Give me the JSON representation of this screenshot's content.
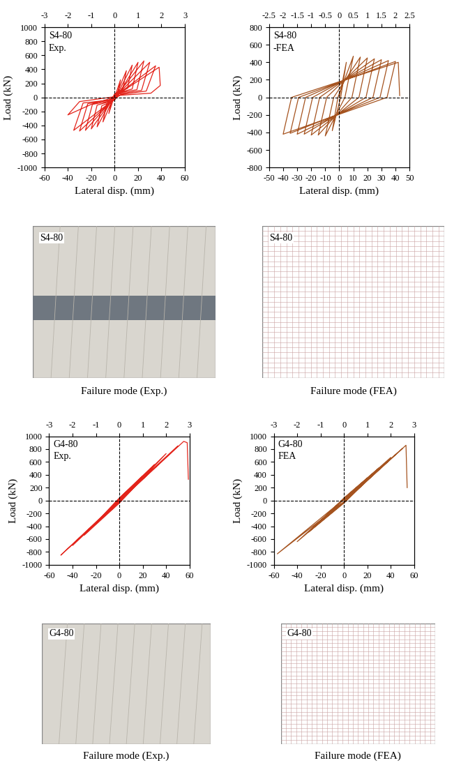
{
  "chart_data": [
    {
      "type": "line",
      "title": "S4-80",
      "subtitle": "Exp.",
      "x_label": "Lateral disp. (mm)",
      "y_label": "Load (kN)",
      "color": "#e3241b",
      "xlim": [
        -60,
        60
      ],
      "xticks": [
        -60,
        -40,
        -20,
        0,
        20,
        40,
        60
      ],
      "ylim": [
        -1000,
        1000
      ],
      "yticks": [
        -1000,
        -800,
        -600,
        -400,
        -200,
        0,
        200,
        400,
        600,
        800,
        1000
      ],
      "x2lim": [
        -3,
        3
      ],
      "x2ticks": [
        -3,
        -2,
        -1,
        0,
        1,
        2,
        3
      ],
      "x": [
        0,
        5,
        3,
        0,
        -5,
        -3,
        0,
        10,
        7,
        0,
        -10,
        -7,
        0,
        15,
        11,
        0,
        -15,
        -11,
        0,
        20,
        15,
        2,
        -20,
        -15,
        -2,
        25,
        19,
        3,
        -25,
        -19,
        -3,
        30,
        23,
        4,
        -30,
        -23,
        -4,
        35,
        27,
        5,
        -35,
        -27,
        -5,
        38,
        39,
        31,
        5,
        -20,
        -40,
        -30,
        0
      ],
      "values": [
        0,
        250,
        80,
        30,
        -230,
        -70,
        -20,
        380,
        120,
        40,
        -350,
        -100,
        -30,
        460,
        130,
        50,
        -420,
        -120,
        -40,
        500,
        120,
        60,
        -450,
        -110,
        -50,
        520,
        110,
        60,
        -470,
        -100,
        -50,
        500,
        100,
        50,
        -480,
        -90,
        -40,
        450,
        90,
        40,
        -470,
        -80,
        -40,
        430,
        170,
        60,
        30,
        -100,
        -250,
        -60,
        10
      ]
    },
    {
      "type": "line",
      "title": "S4-80",
      "subtitle": "-FEA",
      "x_label": "Lateral disp. (mm)",
      "y_label": "Load (kN)",
      "color": "#a5531f",
      "xlim": [
        -50,
        50
      ],
      "xticks": [
        -50,
        -40,
        -30,
        -20,
        -10,
        0,
        10,
        20,
        30,
        40,
        50
      ],
      "ylim": [
        -800,
        800
      ],
      "yticks": [
        -800,
        -600,
        -400,
        -200,
        0,
        200,
        400,
        600,
        800
      ],
      "x2lim": [
        -2.5,
        2.5
      ],
      "x2ticks": [
        -2.5,
        -2,
        -1.5,
        -1,
        -0.5,
        0,
        0.5,
        1,
        1.5,
        2,
        2.5
      ],
      "x": [
        0,
        5,
        1,
        -5,
        -1,
        10,
        4,
        -10,
        -4,
        15,
        9,
        -15,
        -9,
        20,
        14,
        -20,
        -14,
        25,
        19,
        -25,
        -19,
        30,
        24,
        -30,
        -24,
        35,
        29,
        -35,
        -29,
        40,
        34,
        -40,
        -34,
        42,
        43
      ],
      "values": [
        0,
        400,
        0,
        -380,
        0,
        470,
        0,
        -440,
        0,
        460,
        0,
        -430,
        0,
        450,
        0,
        -430,
        0,
        440,
        0,
        -420,
        0,
        430,
        0,
        -420,
        0,
        420,
        0,
        -410,
        0,
        410,
        0,
        -420,
        0,
        400,
        20
      ]
    },
    {
      "type": "line",
      "title": "G4-80",
      "subtitle": "Exp.",
      "x_label": "Lateral disp. (mm)",
      "y_label": "Load (kN)",
      "color": "#e3241b",
      "xlim": [
        -60,
        60
      ],
      "xticks": [
        -60,
        -40,
        -20,
        0,
        20,
        40,
        60
      ],
      "ylim": [
        -1000,
        1000
      ],
      "yticks": [
        -1000,
        -800,
        -600,
        -400,
        -200,
        0,
        200,
        400,
        600,
        800,
        1000
      ],
      "x2lim": [
        -3,
        3
      ],
      "x2ticks": [
        -3,
        -2,
        -1,
        0,
        1,
        2,
        3
      ],
      "x": [
        0,
        10,
        0,
        -10,
        0,
        20,
        0,
        -20,
        0,
        30,
        0,
        -30,
        0,
        40,
        2,
        -40,
        -2,
        50,
        3,
        -50,
        -3,
        55,
        58,
        59
      ],
      "values": [
        0,
        200,
        20,
        -180,
        -20,
        380,
        30,
        -360,
        -30,
        560,
        40,
        -540,
        -40,
        730,
        50,
        -700,
        -50,
        850,
        60,
        -850,
        -60,
        920,
        900,
        330
      ]
    },
    {
      "type": "line",
      "title": "G4-80",
      "subtitle": "FEA",
      "x_label": "Lateral disp. (mm)",
      "y_label": "Load (kN)",
      "color": "#a5531f",
      "xlim": [
        -60,
        60
      ],
      "xticks": [
        -60,
        -40,
        -20,
        0,
        20,
        40,
        60
      ],
      "ylim": [
        -1000,
        1000
      ],
      "yticks": [
        -1000,
        -800,
        -600,
        -400,
        -200,
        0,
        200,
        400,
        600,
        800,
        1000
      ],
      "x2lim": [
        -3,
        3
      ],
      "x2ticks": [
        -3,
        -2,
        -1,
        0,
        1,
        2,
        3
      ],
      "x": [
        0,
        10,
        0,
        -10,
        0,
        20,
        0,
        -20,
        0,
        30,
        0,
        -30,
        0,
        40,
        1,
        -40,
        -1,
        50,
        2,
        -57,
        -2,
        53,
        54
      ],
      "values": [
        0,
        180,
        20,
        -170,
        -20,
        350,
        30,
        -330,
        -30,
        510,
        40,
        -490,
        -40,
        670,
        40,
        -640,
        -40,
        810,
        50,
        -830,
        -50,
        860,
        200
      ]
    }
  ],
  "images": [
    {
      "label": "S4-80",
      "caption": "Failure mode (Exp.)"
    },
    {
      "label": "S4-80",
      "caption": "Failure mode (FEA)"
    },
    {
      "label": "G4-80",
      "caption": "Failure mode (Exp.)"
    },
    {
      "label": "G4-80",
      "caption": "Failure mode (FEA)"
    }
  ]
}
